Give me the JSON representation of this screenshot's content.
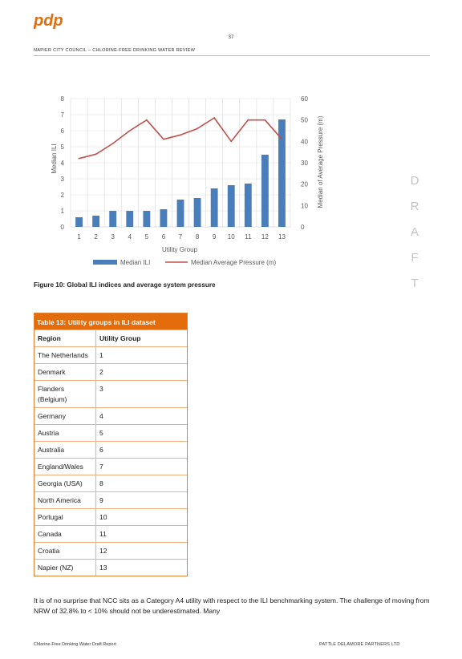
{
  "header": {
    "logo_text": "pdp",
    "page_number": "37",
    "title": "NAPIER CITY COUNCIL – CHLORINE-FREE DRINKING WATER REVIEW"
  },
  "watermark": [
    "D",
    "R",
    "A",
    "F",
    "T"
  ],
  "chart_data": {
    "type": "bar",
    "categories": [
      "1",
      "2",
      "3",
      "4",
      "5",
      "6",
      "7",
      "8",
      "9",
      "10",
      "11",
      "12",
      "13"
    ],
    "xlabel": "Utility Group",
    "ylabel": "Median ILI",
    "y2label": "Median of Average Pressure (m)",
    "ylim": [
      0,
      8
    ],
    "y2lim": [
      0,
      60
    ],
    "yticks": [
      "0",
      "1",
      "2",
      "3",
      "4",
      "5",
      "6",
      "7",
      "8"
    ],
    "y2ticks": [
      "0",
      "10",
      "20",
      "30",
      "40",
      "50",
      "60"
    ],
    "grid": true,
    "legend_position": "bottom",
    "series": [
      {
        "name": "Median ILI",
        "type": "bar",
        "axis": "left",
        "color": "#4a7ebb",
        "values": [
          0.6,
          0.7,
          1.0,
          1.0,
          1.0,
          1.1,
          1.7,
          1.8,
          2.4,
          2.6,
          2.7,
          4.5,
          6.7
        ]
      },
      {
        "name": "Median Average Pressure (m)",
        "type": "line",
        "axis": "right",
        "color": "#c0504d",
        "values": [
          32,
          34,
          39,
          45,
          50,
          41,
          43,
          46,
          51,
          40,
          50,
          50,
          41
        ]
      }
    ]
  },
  "figure_caption": "Figure 10: Global ILI indices and average system pressure",
  "table": {
    "title": "Table 13: Utility groups in ILI dataset",
    "headers": [
      "Region",
      "Utility Group"
    ],
    "rows": [
      {
        "region": "The Netherlands",
        "group": "1"
      },
      {
        "region": "Denmark",
        "group": "2"
      },
      {
        "region": "Flanders (Belgium)",
        "group": "3"
      },
      {
        "region": "Germany",
        "group": "4"
      },
      {
        "region": "Austria",
        "group": "5"
      },
      {
        "region": "Australia",
        "group": "6"
      },
      {
        "region": "England/Wales",
        "group": "7"
      },
      {
        "region": "Georgia (USA)",
        "group": "8"
      },
      {
        "region": "North America",
        "group": "9"
      },
      {
        "region": "Portugal",
        "group": "10"
      },
      {
        "region": "Canada",
        "group": "11"
      },
      {
        "region": "Croatia",
        "group": "12"
      },
      {
        "region": "Napier (NZ)",
        "group": "13"
      }
    ]
  },
  "body": {
    "paragraph": "It is of no surprise that NCC sits as a Category A4 utility with respect to the ILI benchmarking system. The challenge of moving from NRW of 32.8% to < 10% should not be underestimated. Many"
  },
  "footer": {
    "left": "Chlorine-Free Drinking Water Draft Report",
    "right": "PATTLE DELAMORE PARTNERS LTD"
  }
}
